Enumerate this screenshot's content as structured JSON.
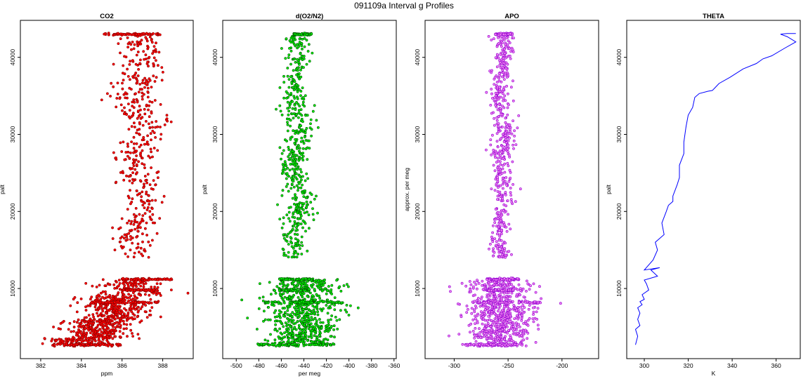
{
  "figure": {
    "title": "091109a   Interval g Profiles"
  },
  "chart_data": [
    {
      "type": "scatter",
      "title": "CO2",
      "xlabel": "ppm",
      "ylabel": "palt",
      "xlim": [
        381,
        389.5
      ],
      "ylim": [
        900,
        44800
      ],
      "xticks": [
        382,
        384,
        386,
        388
      ],
      "yticks": [
        10000,
        20000,
        30000,
        40000
      ],
      "color_fill": "#ff0000",
      "color_edge": "#8b0000",
      "segments": [
        {
          "y": [
            2500,
            3500
          ],
          "x_center": 383.9,
          "x_sd": 0.75,
          "n": 110
        },
        {
          "y": [
            3500,
            6000
          ],
          "x_center": 384.8,
          "x_sd": 0.75,
          "n": 260
        },
        {
          "y": [
            6000,
            9000
          ],
          "x_center": 385.6,
          "x_sd": 0.75,
          "n": 260
        },
        {
          "y": [
            9000,
            11200
          ],
          "x_center": 386.4,
          "x_sd": 0.9,
          "n": 110
        },
        {
          "y": [
            14000,
            43000
          ],
          "x_center": 386.8,
          "x_sd": 0.55,
          "n": 460
        }
      ],
      "levels": [
        {
          "y": 2700,
          "xmin": 382.5,
          "xmax": 386.0
        },
        {
          "y": 8200,
          "xmin": 384.5,
          "xmax": 387.8
        },
        {
          "y": 9800,
          "xmin": 386.0,
          "xmax": 387.7
        },
        {
          "y": 11200,
          "xmin": 386.0,
          "xmax": 388.5
        },
        {
          "y": 43000,
          "xmin": 385.1,
          "xmax": 387.9
        }
      ]
    },
    {
      "type": "scatter",
      "title": "d(O2/N2)",
      "xlabel": "per meg",
      "ylabel": "palt",
      "xlim": [
        -512,
        -358
      ],
      "ylim": [
        900,
        44800
      ],
      "xticks": [
        -500,
        -480,
        -460,
        -440,
        -420,
        -400,
        -380,
        -360
      ],
      "yticks": [
        10000,
        20000,
        30000,
        40000
      ],
      "color_fill": "#00ee00",
      "color_edge": "#005500",
      "segments": [
        {
          "y": [
            2500,
            11200
          ],
          "x_center": -442,
          "x_sd": 16,
          "n": 650
        },
        {
          "y": [
            14000,
            43000
          ],
          "x_center": -446,
          "x_sd": 6,
          "n": 520
        }
      ],
      "levels": [
        {
          "y": 2700,
          "xmin": -480,
          "xmax": -415
        },
        {
          "y": 8200,
          "xmin": -475,
          "xmax": -405
        },
        {
          "y": 9800,
          "xmin": -462,
          "xmax": -435
        },
        {
          "y": 11200,
          "xmin": -462,
          "xmax": -432
        },
        {
          "y": 43000,
          "xmin": -449,
          "xmax": -433
        }
      ]
    },
    {
      "type": "scatter",
      "title": "APO",
      "xlabel": "",
      "ylabel": "approx. per meg",
      "xlim": [
        -327,
        -166
      ],
      "ylim": [
        900,
        44800
      ],
      "xticks": [
        -300,
        -250,
        -200
      ],
      "yticks": [
        10000,
        20000,
        30000,
        40000
      ],
      "color_fill": "#ee82ee",
      "color_edge": "#9400d3",
      "segments": [
        {
          "y": [
            2500,
            11200
          ],
          "x_center": -258,
          "x_sd": 15,
          "n": 650
        },
        {
          "y": [
            14000,
            43000
          ],
          "x_center": -256,
          "x_sd": 5,
          "n": 520
        }
      ],
      "levels": [
        {
          "y": 2700,
          "xmin": -290,
          "xmax": -235
        },
        {
          "y": 8200,
          "xmin": -283,
          "xmax": -220
        },
        {
          "y": 9800,
          "xmin": -270,
          "xmax": -245
        },
        {
          "y": 11200,
          "xmin": -270,
          "xmax": -240
        },
        {
          "y": 43000,
          "xmin": -262,
          "xmax": -246
        }
      ]
    },
    {
      "type": "line",
      "title": "THETA",
      "xlabel": "K",
      "ylabel": "palt",
      "xlim": [
        292,
        371
      ],
      "ylim": [
        900,
        44800
      ],
      "xticks": [
        300,
        320,
        340,
        360
      ],
      "yticks": [
        10000,
        20000,
        30000,
        40000
      ],
      "color": "#0000ff",
      "x": [
        296,
        297,
        296,
        298,
        297,
        298,
        297,
        299,
        298,
        300,
        299,
        302,
        301,
        300,
        306,
        303,
        307,
        300,
        304,
        306,
        305,
        309,
        308,
        310,
        311,
        313,
        313,
        315,
        316,
        316,
        318,
        318,
        319,
        320,
        322,
        323,
        325,
        329,
        331,
        332,
        334,
        339,
        345,
        351,
        354,
        358,
        364,
        369,
        365,
        362,
        365,
        369
      ],
      "y": [
        2700,
        3800,
        4700,
        5200,
        6000,
        6800,
        7500,
        7900,
        8300,
        8600,
        9200,
        9800,
        10600,
        11100,
        11600,
        12400,
        12700,
        12400,
        13700,
        15000,
        16000,
        17000,
        18500,
        20000,
        20800,
        21300,
        22000,
        23500,
        24400,
        26000,
        27500,
        29000,
        31000,
        32500,
        33500,
        34800,
        35300,
        35600,
        35700,
        36000,
        36600,
        37400,
        38500,
        39200,
        39800,
        40200,
        41200,
        42000,
        42700,
        43000,
        43100,
        43100
      ]
    }
  ]
}
